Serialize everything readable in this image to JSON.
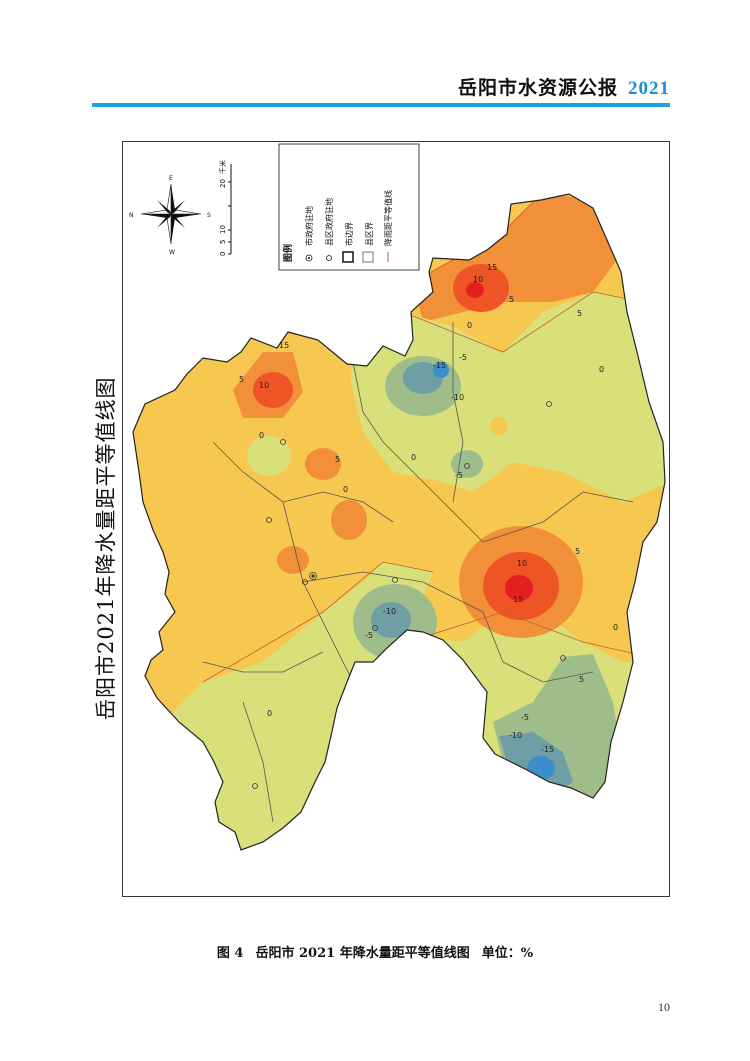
{
  "header": {
    "title": "岳阳市水资源公报",
    "year": "2021"
  },
  "figure": {
    "vertical_title": "岳阳市2021年降水量距平等值线图",
    "caption_number": "图 4",
    "caption_text": "岳阳市 2021 年降水量距平等值线图",
    "caption_unit": "单位：%"
  },
  "legend": {
    "title": "图例",
    "items": [
      "市政府驻地",
      "县区政府驻地",
      "市边界",
      "县区界",
      "降雨距平等值线"
    ]
  },
  "scale_bar": {
    "ticks": [
      "0",
      "5",
      "10",
      "20"
    ],
    "unit": "千米"
  },
  "compass": {
    "n": "N",
    "s": "S",
    "e": "E",
    "w": "W"
  },
  "contour_labels": {
    "ne_15": "15",
    "ne_10": "10",
    "ne_5": "5",
    "ne_0": "0",
    "e_5": "5",
    "e_0": "0",
    "nw_15": "15",
    "nw_10": "10",
    "nw_5": "5",
    "wc_0": "0",
    "wc_5": "5",
    "c_m5": "-5",
    "c_m10": "-10",
    "c_m15": "-15",
    "c_0": "0",
    "c_m5b": "-5",
    "c_0b": "0",
    "se_15": "15",
    "se_10": "10",
    "se_5": "5",
    "se_0": "0",
    "se_5b": "5",
    "sc_m10": "-10",
    "sc_m5": "-5",
    "s_m5": "-5",
    "s_m10": "-10",
    "s_m15": "-15",
    "s_0": "0"
  },
  "colors": {
    "above_15": "#e41f1f",
    "10_to_15": "#ee5426",
    "5_to_10": "#f29039",
    "0_to_5": "#f7c850",
    "m5_to_0": "#d9e07a",
    "m10_to_m5": "#9fbd8a",
    "m15_to_m10": "#6f9fa4",
    "below_m15": "#3b8fc8",
    "accent": "#1aa2dd"
  },
  "page_number": "10"
}
